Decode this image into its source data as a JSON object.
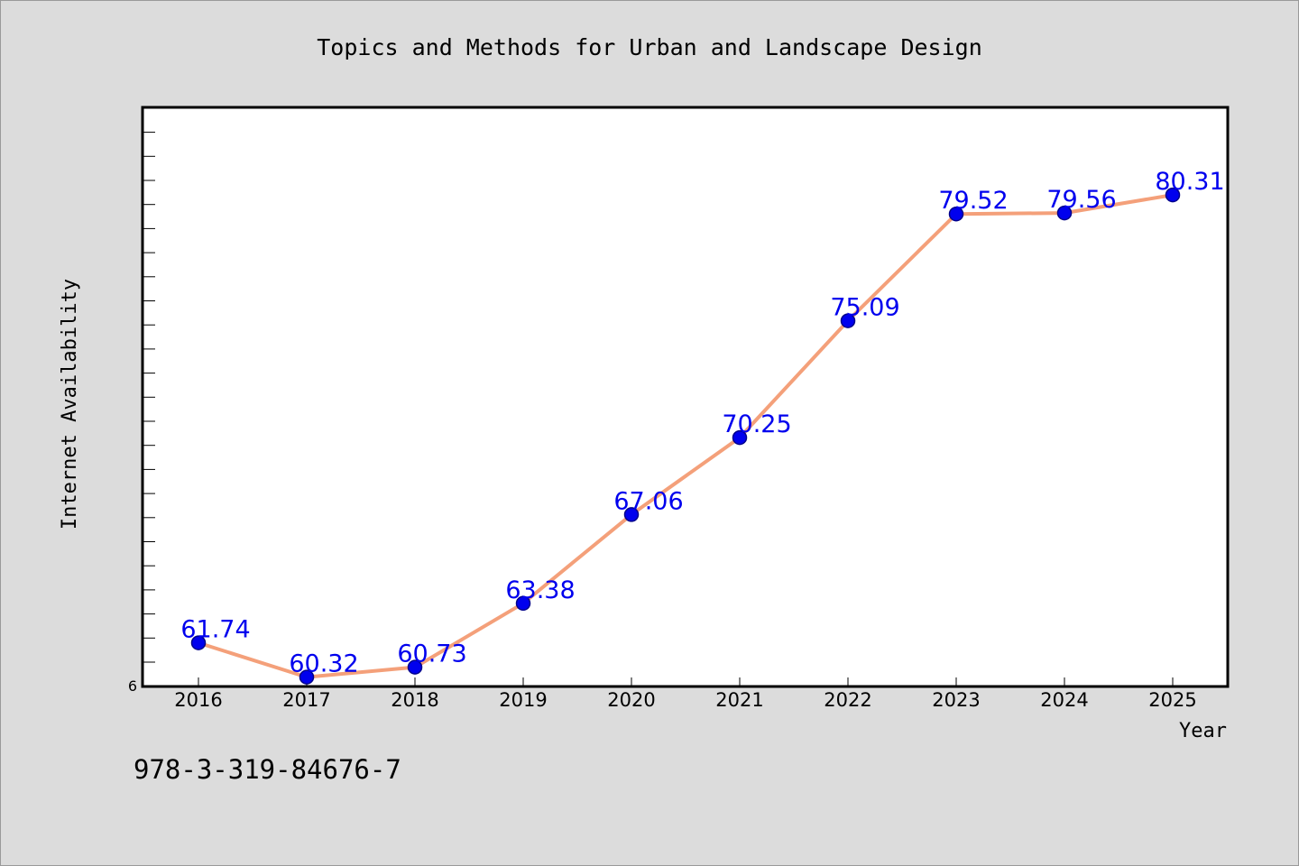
{
  "chart_data": {
    "type": "line",
    "title": "Topics and Methods for Urban and Landscape Design",
    "xlabel": "Year",
    "ylabel": "Internet Availability",
    "x": [
      "2016",
      "2017",
      "2018",
      "2019",
      "2020",
      "2021",
      "2022",
      "2023",
      "2024",
      "2025"
    ],
    "series": [
      {
        "values": [
          61.74,
          60.32,
          60.73,
          63.38,
          67.06,
          70.25,
          75.09,
          79.52,
          79.56,
          80.31
        ],
        "labels": [
          "61.74",
          "60.32",
          "60.73",
          "63.38",
          "67.06",
          "70.25",
          "75.09",
          "79.52",
          "79.56",
          "80.31"
        ]
      }
    ],
    "ylim": [
      59.93,
      83.94
    ],
    "y_min_tick_label": "6",
    "grid": false,
    "legend": "none",
    "colors": {
      "line": "#f4a07a",
      "marker_fill": "#0000ee",
      "marker_stroke": "#00008b",
      "data_label": "#0000ee",
      "plot_background": "#ffffff",
      "page_background": "#dcdcdc"
    }
  },
  "footer": {
    "isbn": "978-3-319-84676-7"
  }
}
